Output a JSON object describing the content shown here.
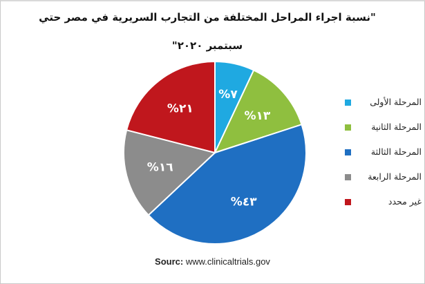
{
  "chart_data": {
    "type": "pie",
    "title_line1": "\"نسبة اجراء المراحل المختلفة من التجارب السريرية في مصر حتي",
    "title_line2": "سبتمبر ٢٠٢٠\"",
    "slices": [
      {
        "label": "المرحلة الأولى",
        "value": 7,
        "value_label": "%٧",
        "color": "#1fa9e1"
      },
      {
        "label": "المرحلة الثانية",
        "value": 13,
        "value_label": "%١٣",
        "color": "#8fbf3f"
      },
      {
        "label": "المرحلة الثالثة",
        "value": 43,
        "value_label": "%٤٣",
        "color": "#1f6fc2"
      },
      {
        "label": "المرحلة الرابعة",
        "value": 16,
        "value_label": "%١٦",
        "color": "#8c8c8c"
      },
      {
        "label": "غير محدد",
        "value": 21,
        "value_label": "%٢١",
        "color": "#c0171d"
      }
    ],
    "start_angle_deg": 0,
    "direction": "clockwise",
    "legend_position": "right"
  },
  "source": {
    "prefix": "Sourc:",
    "text": "www.clinicaltrials.gov"
  }
}
